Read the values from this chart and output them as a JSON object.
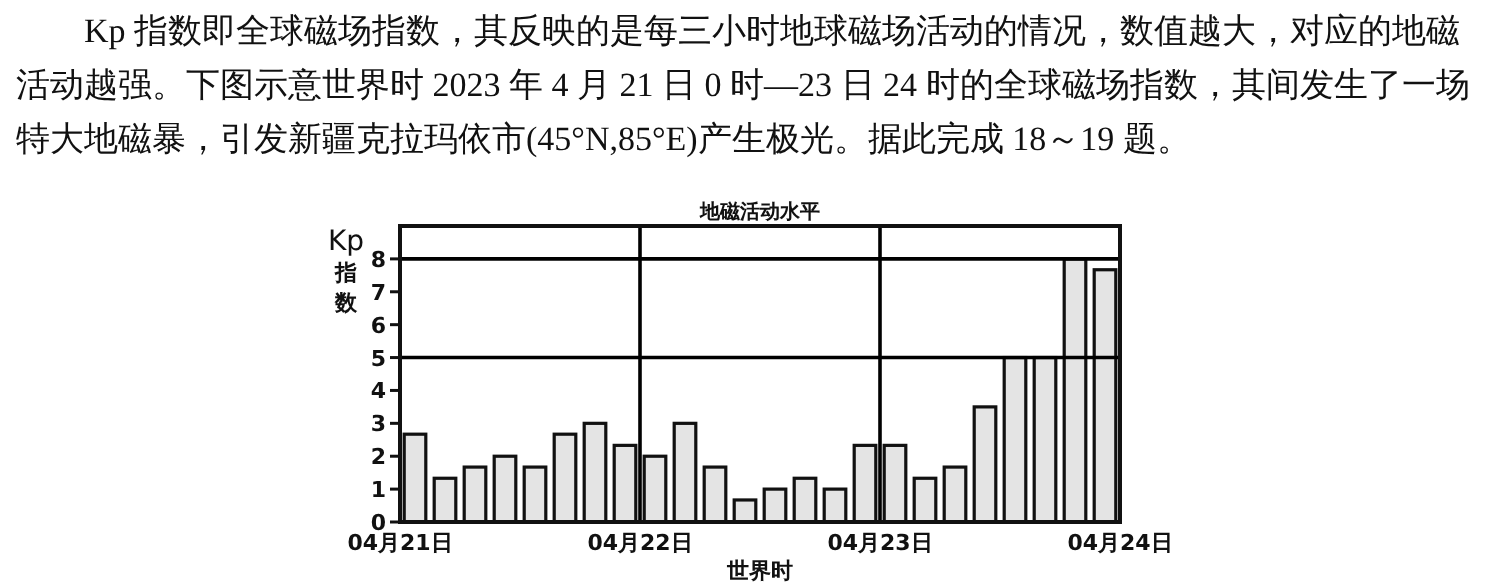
{
  "chart_data": {
    "type": "bar",
    "title": "地磁活动水平",
    "xlabel": "世界时",
    "ylabel": "Kp指数",
    "annotations": [
      "Kp 指数即全球磁场指数，其反映的是每三小时地球磁场活动的情况，数值越大，对应的地磁活动越强。下图示意世界时 2023 年 4 月 21 日 0 时—23 日 24 时的全球磁场指数，其间发生了一场特大地磁暴，引发新疆克拉玛依市(45°N,85°E)产生极光。据此完成 18～19 题。"
    ],
    "x": [
      "2023-04-21T01:30",
      "2023-04-21T04:30",
      "2023-04-21T07:30",
      "2023-04-21T10:30",
      "2023-04-21T13:30",
      "2023-04-21T16:30",
      "2023-04-21T19:30",
      "2023-04-21T22:30",
      "2023-04-22T01:30",
      "2023-04-22T04:30",
      "2023-04-22T07:30",
      "2023-04-22T10:30",
      "2023-04-22T13:30",
      "2023-04-22T16:30",
      "2023-04-22T19:30",
      "2023-04-22T22:30",
      "2023-04-23T01:30",
      "2023-04-23T04:30",
      "2023-04-23T07:30",
      "2023-04-23T10:30",
      "2023-04-23T13:30",
      "2023-04-23T16:30",
      "2023-04-23T19:30",
      "2023-04-23T22:30"
    ],
    "values": [
      2.67,
      1.33,
      1.67,
      2,
      1.67,
      2.67,
      3,
      2.33,
      2,
      3,
      1.67,
      0.67,
      1,
      1.33,
      1,
      2.33,
      2.33,
      1.33,
      1.67,
      3.5,
      5,
      5,
      8,
      7.67
    ],
    "color": "#e4e4e4",
    "xlim": [
      "2023-04-21",
      "2023-04-24"
    ],
    "xticks": [
      {
        "value": "2023-04-21",
        "label": "04月21日"
      },
      {
        "value": "2023-04-22",
        "label": "04月22日"
      },
      {
        "value": "2023-04-23",
        "label": "04月23日"
      },
      {
        "value": "2023-04-24",
        "label": "04月24日"
      }
    ],
    "ylim": [
      0,
      9
    ],
    "yticks": [
      0,
      1,
      2,
      3,
      4,
      5,
      6,
      7,
      8
    ],
    "ref_lines": [
      {
        "axis": "y",
        "value": 5,
        "color": "#000000"
      },
      {
        "axis": "y",
        "value": 8,
        "color": "#000000"
      },
      {
        "axis": "x",
        "value": "2023-04-22",
        "color": "#000000"
      },
      {
        "axis": "x",
        "value": "2023-04-23",
        "color": "#000000"
      }
    ],
    "grid": false
  }
}
